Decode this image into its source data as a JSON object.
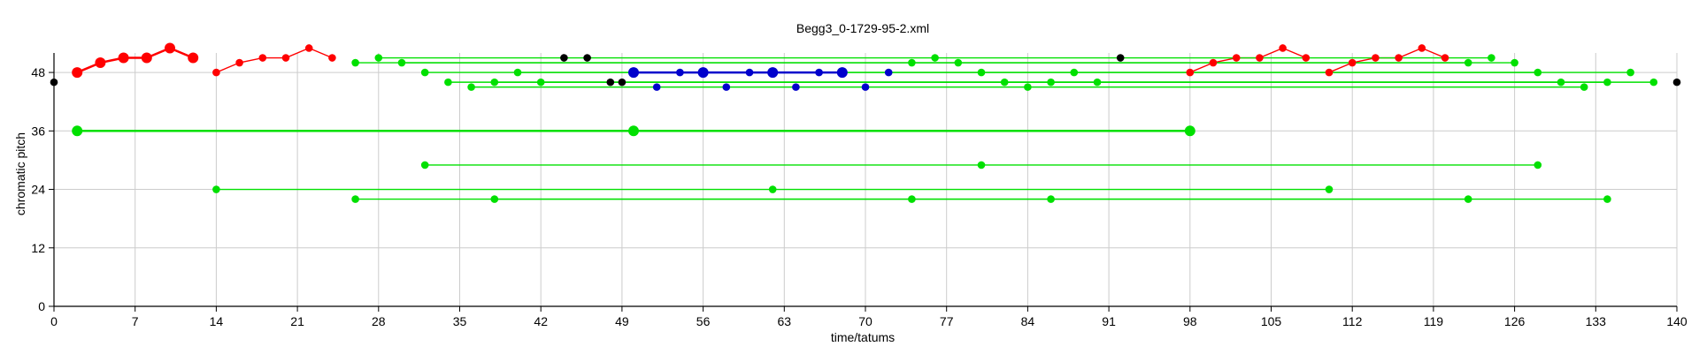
{
  "chart_data": {
    "type": "scatter",
    "title": "Begg3_0-1729-95-2.xml",
    "xlabel": "time/tatums",
    "ylabel": "chromatic pitch",
    "xlim": [
      0,
      140
    ],
    "ylim": [
      0,
      52
    ],
    "x_ticks": [
      0,
      7,
      14,
      21,
      28,
      35,
      42,
      49,
      56,
      63,
      70,
      77,
      84,
      91,
      98,
      105,
      112,
      119,
      126,
      133,
      140
    ],
    "y_ticks": [
      0,
      12,
      24,
      36,
      48
    ],
    "grid": true,
    "colors": {
      "red": "#ff0000",
      "green": "#00e000",
      "blue": "#0000cc",
      "black": "#000000",
      "grid": "#cccccc"
    },
    "series": [
      {
        "color": "red",
        "connected": true,
        "size": "large",
        "points": [
          [
            2,
            48
          ],
          [
            4,
            50
          ],
          [
            6,
            51
          ],
          [
            8,
            51
          ],
          [
            10,
            53
          ],
          [
            12,
            51
          ]
        ]
      },
      {
        "color": "red",
        "connected": true,
        "size": "small",
        "points": [
          [
            14,
            48
          ],
          [
            16,
            50
          ],
          [
            18,
            51
          ],
          [
            20,
            51
          ],
          [
            22,
            53
          ],
          [
            24,
            51
          ]
        ]
      },
      {
        "color": "red",
        "connected": true,
        "size": "small",
        "points": [
          [
            98,
            48
          ],
          [
            100,
            50
          ],
          [
            102,
            51
          ],
          [
            104,
            51
          ],
          [
            106,
            53
          ],
          [
            108,
            51
          ]
        ]
      },
      {
        "color": "red",
        "connected": true,
        "size": "small",
        "points": [
          [
            110,
            48
          ],
          [
            112,
            50
          ],
          [
            114,
            51
          ],
          [
            116,
            51
          ],
          [
            118,
            53
          ],
          [
            120,
            51
          ]
        ]
      },
      {
        "color": "green",
        "connected": true,
        "size": "small",
        "points": [
          [
            28,
            51
          ],
          [
            124,
            51
          ]
        ]
      },
      {
        "color": "green",
        "connected": true,
        "size": "small",
        "points": [
          [
            26,
            50
          ],
          [
            74,
            50
          ],
          [
            122,
            50
          ]
        ]
      },
      {
        "color": "green",
        "connected": true,
        "size": "small",
        "points": [
          [
            30,
            50
          ],
          [
            78,
            50
          ],
          [
            126,
            50
          ]
        ]
      },
      {
        "color": "green",
        "connected": true,
        "size": "small",
        "points": [
          [
            32,
            48
          ],
          [
            80,
            48
          ],
          [
            128,
            48
          ]
        ]
      },
      {
        "color": "green",
        "connected": true,
        "size": "small",
        "points": [
          [
            40,
            48
          ],
          [
            88,
            48
          ],
          [
            136,
            48
          ]
        ]
      },
      {
        "color": "green",
        "connected": true,
        "size": "small",
        "points": [
          [
            34,
            46
          ],
          [
            82,
            46
          ],
          [
            130,
            46
          ]
        ]
      },
      {
        "color": "green",
        "connected": true,
        "size": "small",
        "points": [
          [
            38,
            46
          ],
          [
            86,
            46
          ],
          [
            134,
            46
          ]
        ]
      },
      {
        "color": "green",
        "connected": true,
        "size": "small",
        "points": [
          [
            42,
            46
          ],
          [
            90,
            46
          ],
          [
            138,
            46
          ]
        ]
      },
      {
        "color": "green",
        "connected": true,
        "size": "small",
        "points": [
          [
            36,
            45
          ],
          [
            84,
            45
          ],
          [
            132,
            45
          ]
        ]
      },
      {
        "color": "green",
        "connected": true,
        "size": "small",
        "points": [
          [
            76,
            51
          ]
        ]
      },
      {
        "color": "green",
        "connected": true,
        "size": "large",
        "points": [
          [
            2,
            36
          ],
          [
            50,
            36
          ],
          [
            98,
            36
          ]
        ]
      },
      {
        "color": "green",
        "connected": true,
        "size": "small",
        "points": [
          [
            32,
            29
          ],
          [
            80,
            29
          ],
          [
            128,
            29
          ]
        ]
      },
      {
        "color": "green",
        "connected": true,
        "size": "small",
        "points": [
          [
            14,
            24
          ],
          [
            62,
            24
          ],
          [
            110,
            24
          ]
        ]
      },
      {
        "color": "green",
        "connected": true,
        "size": "small",
        "points": [
          [
            26,
            22
          ],
          [
            74,
            22
          ],
          [
            122,
            22
          ]
        ]
      },
      {
        "color": "green",
        "connected": true,
        "size": "small",
        "points": [
          [
            38,
            22
          ],
          [
            86,
            22
          ],
          [
            134,
            22
          ]
        ]
      },
      {
        "color": "blue",
        "connected": true,
        "size": "large",
        "points": [
          [
            50,
            48
          ],
          [
            56,
            48
          ],
          [
            62,
            48
          ],
          [
            68,
            48
          ]
        ]
      },
      {
        "color": "blue",
        "connected": false,
        "size": "small",
        "points": [
          [
            54,
            48
          ],
          [
            60,
            48
          ],
          [
            66,
            48
          ],
          [
            72,
            48
          ],
          [
            52,
            45
          ],
          [
            58,
            45
          ],
          [
            64,
            45
          ],
          [
            70,
            45
          ]
        ]
      },
      {
        "color": "black",
        "connected": false,
        "size": "small",
        "points": [
          [
            0,
            46
          ],
          [
            44,
            51
          ],
          [
            46,
            51
          ],
          [
            48,
            46
          ],
          [
            49,
            46
          ],
          [
            92,
            51
          ],
          [
            140,
            46
          ]
        ]
      }
    ]
  }
}
